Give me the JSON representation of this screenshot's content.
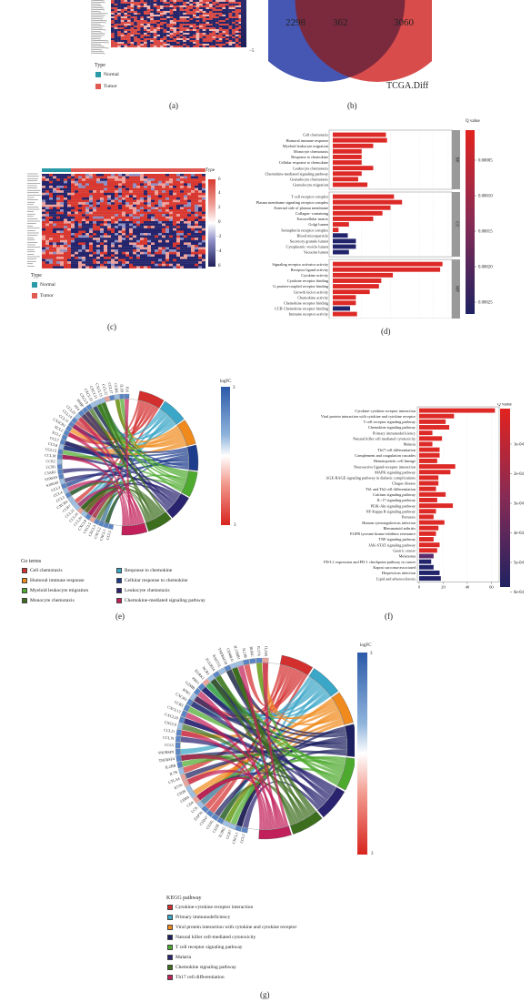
{
  "panels": {
    "a": {
      "letter": "(a)",
      "type_title": "Type",
      "types": [
        "Normal",
        "Tumor"
      ],
      "scale_tick": "−5",
      "colors": {
        "normal": "#2a9aa8",
        "tumor": "#e05a52"
      }
    },
    "b": {
      "letter": "(b)",
      "venn": {
        "left": "2298",
        "overlap": "362",
        "right": "3060",
        "right_label": "TCGA.Diff"
      }
    },
    "c": {
      "letter": "(c)",
      "type_title": "Type",
      "types": [
        "Normal",
        "Tumor"
      ],
      "scale_ticks": [
        "6",
        "4",
        "2",
        "0",
        "−2",
        "−4",
        "6"
      ]
    },
    "d": {
      "letter": "(d)",
      "q_title": "Q value",
      "q_ticks": [
        "0.00005",
        "0.00010",
        "0.00015",
        "0.00020",
        "0.00025"
      ],
      "facets": [
        "BP",
        "CC",
        "MF"
      ],
      "x_ticks": [
        "0",
        "25",
        "50",
        "75"
      ]
    },
    "e": {
      "letter": "(e)",
      "logfc_title": "logFC",
      "logfc_top": "3",
      "logfc_bottom": "3",
      "go_title": "Go terms",
      "terms": [
        {
          "label": "Cell chemotaxis",
          "color": "#d42f2f"
        },
        {
          "label": "Response to chemokine",
          "color": "#3aa6c8"
        },
        {
          "label": "Humoral immune response",
          "color": "#f08a1c"
        },
        {
          "label": "Cellular response to chemokine",
          "color": "#1d3c8c"
        },
        {
          "label": "Myeloid leukocyte migration",
          "color": "#4daa2e"
        },
        {
          "label": "Leukocyte chemotaxis",
          "color": "#2a2470"
        },
        {
          "label": "Monocyte chemotaxis",
          "color": "#3d6e1e"
        },
        {
          "label": "Chemokine-mediated signaling pathway",
          "color": "#c2205a"
        }
      ],
      "genes": [
        "CCL2",
        "CXCL1",
        "CXCL2",
        "CXCL3",
        "CXCL5",
        "CXCL8",
        "CCL20",
        "CCL19",
        "CCL21",
        "CCR7",
        "CXCR4",
        "CCL5",
        "CCL4",
        "CCL3",
        "S100A8",
        "S100A9",
        "C5AR1",
        "CCR1",
        "CCR2",
        "CCL18",
        "CCL13",
        "CCL8",
        "CCL7",
        "XCL1",
        "XCL2",
        "CX3CR1",
        "CCL11",
        "CCL14",
        "CCL23",
        "PF4",
        "PPBP",
        "CXCL9",
        "CXCL10",
        "CXCL11",
        "CXCL13",
        "CCL22",
        "CCL17",
        "CCR4",
        "IL1B",
        "IL6"
      ]
    },
    "f": {
      "letter": "(f)",
      "q_title": "Q value",
      "q_ticks": [
        "1e-04",
        "2e-04",
        "3e-04",
        "4e-04",
        "5e-04",
        "6e-04"
      ],
      "x_ticks": [
        "0",
        "20",
        "40",
        "60"
      ]
    },
    "g": {
      "letter": "(g)",
      "logfc_title": "logFC",
      "logfc_top": "3",
      "logfc_bottom": "3",
      "kegg_title": "KEGG pathway",
      "pathways": [
        {
          "label": "Cytokine-cytokine receptor interaction",
          "color": "#d42f2f"
        },
        {
          "label": "Primary immunodeficiency",
          "color": "#3aa6c8"
        },
        {
          "label": "Viral protein interaction with cytokine and cytokine receptor",
          "color": "#f08a1c"
        },
        {
          "label": "Natural killer cell-mediated cytotoxicity",
          "color": "#1d2060"
        },
        {
          "label": "T cell receptor signaling pathway",
          "color": "#4daa2e"
        },
        {
          "label": "Malaria",
          "color": "#2a2470"
        },
        {
          "label": "Chemokine signaling pathway",
          "color": "#3d6e1e"
        },
        {
          "label": "Th17 cell differentiation",
          "color": "#c2205a"
        }
      ],
      "genes": [
        "CCL2",
        "CXCL1",
        "CCR7",
        "IL2RG",
        "CD3E",
        "CD3G",
        "CD247",
        "ZAP70",
        "LCK",
        "CD4",
        "CD8A",
        "CD28",
        "ICOS",
        "CTLA4",
        "IL7R",
        "IL2RB",
        "TNFRSF4",
        "TNFRSF9",
        "CCL5",
        "CCL19",
        "CCL21",
        "CXCL9",
        "CXCL10",
        "CXCL13",
        "CCR5",
        "CXCR3",
        "IFNG",
        "GZMB",
        "PRF1",
        "KLRK1",
        "NCR1",
        "FCGR3A",
        "RAET1L",
        "TNFRSF18",
        "CD40LG",
        "IL12RB1",
        "IL21R",
        "RORC",
        "IL17A",
        "IL23R"
      ]
    }
  },
  "chart_data": [
    {
      "type": "bar",
      "title": "",
      "panel": "d",
      "xlabel": "",
      "ylabel": "",
      "xlim": [
        0,
        100
      ],
      "color_scale": "Q value",
      "facets": [
        {
          "name": "BP",
          "categories": [
            "Cell chemotaxis",
            "Humoral immune response",
            "Myeloid leukocyte migration",
            "Monocyte chemotaxis",
            "Response to chemokine",
            "Cellular response to chemokine",
            "Leukocyte chemotaxis",
            "Chemokine-mediated signaling pathway",
            "Granulocyte chemotaxis",
            "Granulocyte migration"
          ],
          "values": [
            46,
            47,
            35,
            25,
            25,
            25,
            35,
            25,
            22,
            30
          ],
          "qvalues": [
            3e-05,
            3e-05,
            3e-05,
            3e-05,
            3e-05,
            3e-05,
            3e-05,
            3e-05,
            3e-05,
            3e-05
          ]
        },
        {
          "name": "CC",
          "categories": [
            "T cell receptor complex",
            "Plasma membrane signaling receptor complex",
            "External side of plasma membrane",
            "Collagen−containing",
            "Extracellular matrix",
            "Golgi lumen",
            "Semaphorin receptor complex",
            "Blood microparticle",
            "Secretory granule lumen",
            "Cytoplasmic vesicle lumen",
            "Vacuolar lumen"
          ],
          "values": [
            53,
            60,
            50,
            43,
            35,
            14,
            5,
            13,
            20,
            20,
            14
          ],
          "qvalues": [
            3e-05,
            3e-05,
            3e-05,
            3e-05,
            3e-05,
            3e-05,
            3e-05,
            0.00025,
            0.00025,
            0.00025,
            0.00025
          ]
        },
        {
          "name": "MF",
          "categories": [
            "Signaling receptor activator activity",
            "Receptor ligand activity",
            "Cytokine activity",
            "Cytokine receptor binding",
            "G protein-coupled receptor binding",
            "Growth factor activity",
            "Chemokine activity",
            "Chemokine receptor binding",
            "CCR Chemokine receptor binding",
            "Immune receptor activity"
          ],
          "values": [
            95,
            93,
            52,
            42,
            40,
            32,
            20,
            20,
            15,
            21
          ],
          "qvalues": [
            3e-05,
            3e-05,
            3e-05,
            3e-05,
            3e-05,
            3e-05,
            3e-05,
            3e-05,
            0.00025,
            3e-05
          ]
        }
      ]
    },
    {
      "type": "bar",
      "title": "",
      "panel": "f",
      "xlabel": "",
      "ylabel": "",
      "xlim": [
        0,
        65
      ],
      "color_scale": "Q value",
      "categories": [
        "Cytokine-cytokine receptor interaction",
        "Viral protein interaction with cytokine and cytokine receptor",
        "T cell receptor signaling pathway",
        "Chemokine signaling pathway",
        "Primary immunodeficiency",
        "Natural killer cell mediated cytotoxicity",
        "Malaria",
        "Th17 cell differentiation",
        "Complement and coagulation cascades",
        "Hematopoietic cell lineage",
        "Neuroactive ligand-receptor interaction",
        "MAPK signaling pathway",
        "AGE-RAGE signaling pathway in diabetic complications",
        "Chagas disease",
        "Th1 and Th2 cell differentiation",
        "Calcium signaling pathway",
        "IL-17 signaling pathway",
        "PI3K-Akt signaling pathway",
        "NF-Kappa B signaling pathway",
        "Pertussis",
        "Human cytomegalovirus infection",
        "Rheumatoid arthritis",
        "EGFR tyrosine kinase inhibitor resistance",
        "TNF signaling pathway",
        "JAK-STAT signaling pathway",
        "Gastric cancer",
        "Melanoma",
        "PD-L1 expression and PD-1 checkpoint pathway in cancer",
        "Kaposi sarcoma-associated",
        "Herpesvirus infection",
        "Lipid and atherosclerosis"
      ],
      "values": [
        63,
        29,
        22,
        25,
        11,
        19,
        11,
        17,
        17,
        15,
        30,
        26,
        16,
        16,
        14,
        22,
        15,
        28,
        14,
        12,
        21,
        16,
        14,
        12,
        17,
        15,
        12,
        10,
        12,
        17,
        18
      ],
      "qvalues": [
        1e-05,
        1e-05,
        1e-05,
        1e-05,
        1e-05,
        1e-05,
        1e-05,
        1e-05,
        1e-05,
        1e-05,
        1e-05,
        1e-05,
        1e-05,
        1e-05,
        1e-05,
        1e-05,
        1e-05,
        1e-05,
        1e-05,
        1e-05,
        1e-05,
        1e-05,
        1e-05,
        1e-05,
        1e-05,
        1e-05,
        0.0003,
        0.0005,
        0.0005,
        0.0005,
        0.0006
      ]
    }
  ]
}
